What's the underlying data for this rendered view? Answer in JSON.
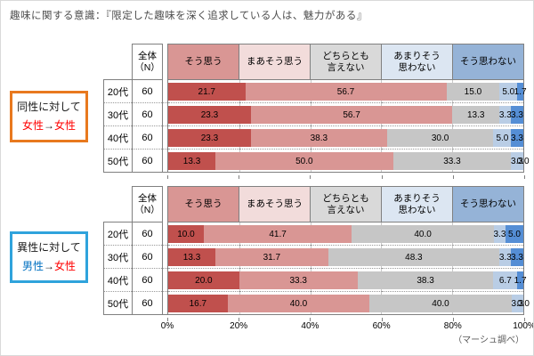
{
  "title": "趣味に関する意識：『限定した趣味を深く追求している人は、魅力がある』",
  "footer": "（マーシュ調べ）",
  "n_header": "全体\n（N）",
  "legend_display": [
    "そう思う",
    "まあそう思う",
    "どちらとも\n言えない",
    "あまりそう\n思わない",
    "そう思わない"
  ],
  "axis": {
    "ticks": [
      "0%",
      "20%",
      "40%",
      "60%",
      "80%",
      "100%"
    ]
  },
  "groups": [
    {
      "line1": "同性に対して",
      "from": "女性",
      "arrow": "→",
      "to": "女性",
      "from_color": "#ff0000",
      "to_color": "#ff0000",
      "border_color": "#e8791e"
    },
    {
      "line1": "異性に対して",
      "from": "男性",
      "arrow": "→",
      "to": "女性",
      "from_color": "#0070c0",
      "to_color": "#ff0000",
      "border_color": "#2fa3dc"
    }
  ],
  "colors": {
    "segments": [
      "#c0504d",
      "#d99694",
      "#c6c6c6",
      "#b9cde5",
      "#558ed5"
    ],
    "legend_cells": [
      "#d99694",
      "#f2dcdb",
      "#d9d9d9",
      "#dce6f2",
      "#95b3d7"
    ],
    "table_border": "#808080",
    "gridline": "#c8c8c8"
  },
  "chart_data": [
    {
      "type": "bar",
      "stacked": true,
      "orientation": "horizontal",
      "group": "同性に対して 女性→女性",
      "categories": [
        "20代",
        "30代",
        "40代",
        "50代"
      ],
      "n_values": [
        60,
        60,
        60,
        60
      ],
      "series": [
        {
          "name": "そう思う",
          "values": [
            21.7,
            23.3,
            23.3,
            13.3
          ]
        },
        {
          "name": "まあそう思う",
          "values": [
            56.7,
            56.7,
            38.3,
            50.0
          ]
        },
        {
          "name": "どちらとも言えない",
          "values": [
            15.0,
            13.3,
            30.0,
            33.3
          ]
        },
        {
          "name": "あまりそう思わない",
          "values": [
            5.0,
            3.3,
            5.0,
            3.3
          ]
        },
        {
          "name": "そう思わない",
          "values": [
            1.7,
            3.3,
            3.3,
            0.0
          ]
        }
      ],
      "xlim": [
        0,
        100
      ],
      "grid": true,
      "legend_position": "top"
    },
    {
      "type": "bar",
      "stacked": true,
      "orientation": "horizontal",
      "group": "異性に対して 男性→女性",
      "categories": [
        "20代",
        "30代",
        "40代",
        "50代"
      ],
      "n_values": [
        60,
        60,
        60,
        60
      ],
      "series": [
        {
          "name": "そう思う",
          "values": [
            10.0,
            13.3,
            20.0,
            16.7
          ]
        },
        {
          "name": "まあそう思う",
          "values": [
            41.7,
            31.7,
            33.3,
            40.0
          ]
        },
        {
          "name": "どちらとも言えない",
          "values": [
            40.0,
            48.3,
            38.3,
            40.0
          ]
        },
        {
          "name": "あまりそう思わない",
          "values": [
            3.3,
            3.3,
            6.7,
            3.3
          ]
        },
        {
          "name": "そう思わない",
          "values": [
            5.0,
            3.3,
            1.7,
            0.0
          ]
        }
      ],
      "xlim": [
        0,
        100
      ],
      "grid": true,
      "legend_position": "top"
    }
  ]
}
